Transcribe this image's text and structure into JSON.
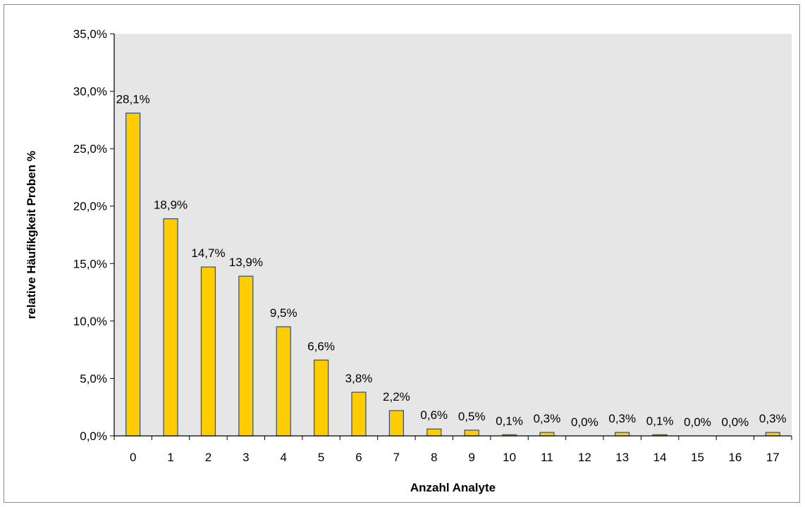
{
  "chart_data": {
    "type": "bar",
    "title": "",
    "xlabel": "Anzahl Analyte",
    "ylabel": "relative Häufikgkeit Proben %",
    "ylim": [
      0,
      35
    ],
    "yticks": [
      "0,0%",
      "5,0%",
      "10,0%",
      "15,0%",
      "20,0%",
      "25,0%",
      "30,0%",
      "35,0%"
    ],
    "ytick_values": [
      0,
      5,
      10,
      15,
      20,
      25,
      30,
      35
    ],
    "categories": [
      "0",
      "1",
      "2",
      "3",
      "4",
      "5",
      "6",
      "7",
      "8",
      "9",
      "10",
      "11",
      "12",
      "13",
      "14",
      "15",
      "16",
      "17"
    ],
    "values": [
      28.1,
      18.9,
      14.7,
      13.9,
      9.5,
      6.6,
      3.8,
      2.2,
      0.6,
      0.5,
      0.1,
      0.3,
      0.0,
      0.3,
      0.1,
      0.0,
      0.0,
      0.3
    ],
    "data_labels": [
      "28,1%",
      "18,9%",
      "14,7%",
      "13,9%",
      "9,5%",
      "6,6%",
      "3,8%",
      "2,2%",
      "0,6%",
      "0,5%",
      "0,1%",
      "0,3%",
      "0,0%",
      "0,3%",
      "0,1%",
      "0,0%",
      "0,0%",
      "0,3%"
    ],
    "grid": false,
    "legend": "none",
    "colors": {
      "bar_fill": "#FFCC00",
      "bar_stroke": "#2F4F7F",
      "plot_background": "#E6E6E6",
      "axis": "#000000"
    }
  }
}
